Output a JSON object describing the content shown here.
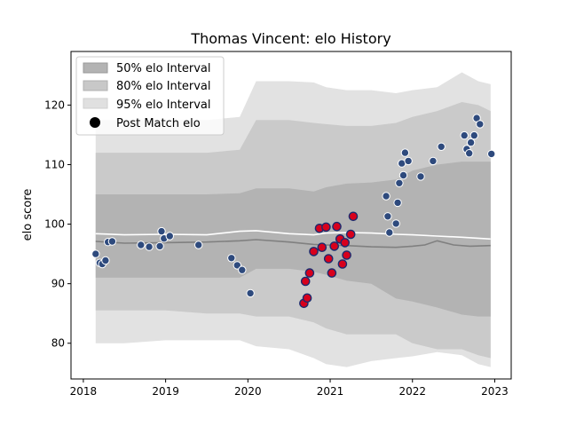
{
  "chart_data": {
    "type": "scatter",
    "title": "Thomas Vincent: elo History",
    "xlabel": "",
    "ylabel": "elo score",
    "xlim": [
      2017.85,
      2023.2
    ],
    "ylim": [
      74,
      129
    ],
    "x_ticks": [
      {
        "value": 2018,
        "label": "2018"
      },
      {
        "value": 2019,
        "label": "2019"
      },
      {
        "value": 2020,
        "label": "2020"
      },
      {
        "value": 2021,
        "label": "2021"
      },
      {
        "value": 2022,
        "label": "2022"
      },
      {
        "value": 2023,
        "label": "2023"
      }
    ],
    "y_ticks": [
      {
        "value": 80,
        "label": "80"
      },
      {
        "value": 90,
        "label": "90"
      },
      {
        "value": 100,
        "label": "100"
      },
      {
        "value": 110,
        "label": "110"
      },
      {
        "value": 120,
        "label": "120"
      }
    ],
    "grid": false,
    "legend_position": "top-left",
    "legend": [
      {
        "label": "50% elo Interval",
        "kind": "band",
        "color": "#b3b3b3"
      },
      {
        "label": "80% elo Interval",
        "kind": "band",
        "color": "#c8c8c8"
      },
      {
        "label": "95% elo Interval",
        "kind": "band",
        "color": "#e0e0e0"
      },
      {
        "label": "Post Match elo",
        "kind": "marker",
        "color": "#000000"
      }
    ],
    "colors": {
      "band_50": "#b3b3b3",
      "band_80": "#cacaca",
      "band_95": "#e2e2e2",
      "median_line": "#808080",
      "mean_line": "#ffffff",
      "point_blue": "#2e4a7d",
      "point_red": "#d8001c",
      "point_edge_white": "#ffffff",
      "point_edge_navy": "#1c2a6e"
    },
    "intervals": {
      "x": [
        2018.15,
        2018.5,
        2019.0,
        2019.5,
        2019.9,
        2020.1,
        2020.5,
        2020.8,
        2020.95,
        2021.2,
        2021.5,
        2021.8,
        2022.0,
        2022.3,
        2022.6,
        2022.8,
        2022.95
      ],
      "p95_high": [
        117.5,
        117.5,
        117.5,
        117.5,
        118,
        124,
        124,
        123.8,
        123,
        122.5,
        122.5,
        122,
        122.5,
        123,
        125.5,
        124,
        123.5
      ],
      "p80_high": [
        112,
        112,
        112,
        112,
        112.5,
        117.5,
        117.5,
        117,
        116.8,
        116.5,
        116.5,
        117,
        118,
        119,
        120.5,
        120,
        119
      ],
      "p50_high": [
        105,
        105,
        105,
        105,
        105.2,
        106,
        106,
        105.5,
        106.2,
        106.8,
        107,
        107.5,
        109,
        110,
        110.5,
        110.5,
        110.5
      ],
      "p50_low": [
        91,
        91,
        91,
        91,
        91,
        92.5,
        92.5,
        92,
        91.5,
        90.5,
        90,
        87.5,
        87,
        86,
        84.8,
        84.5,
        84.5
      ],
      "p80_low": [
        85.5,
        85.5,
        85.5,
        85,
        85,
        84.5,
        84.5,
        83.5,
        82.5,
        81.5,
        81.5,
        81.5,
        80,
        79,
        79,
        78,
        77.5
      ],
      "p95_low": [
        80,
        80,
        80.5,
        80.5,
        80.5,
        79.5,
        79,
        77.5,
        76.5,
        76,
        77,
        77.5,
        77.8,
        78.5,
        78,
        76.5,
        76
      ]
    },
    "median_line": {
      "x": [
        2018.15,
        2018.5,
        2019.0,
        2019.5,
        2019.9,
        2020.1,
        2020.5,
        2020.8,
        2020.95,
        2021.2,
        2021.5,
        2021.8,
        2022.0,
        2022.15,
        2022.3,
        2022.5,
        2022.7,
        2022.95
      ],
      "y": [
        97.1,
        96.8,
        96.9,
        97,
        97.2,
        97.4,
        97,
        96.6,
        96.5,
        96.4,
        96.2,
        96.1,
        96.3,
        96.5,
        97.2,
        96.5,
        96.3,
        96.4
      ]
    },
    "mean_line": {
      "x": [
        2018.15,
        2018.5,
        2019.0,
        2019.5,
        2019.9,
        2020.1,
        2020.5,
        2020.8,
        2020.95,
        2021.2,
        2021.5,
        2021.8,
        2022.0,
        2022.3,
        2022.6,
        2022.95
      ],
      "y": [
        98.4,
        98.2,
        98.3,
        98.2,
        98.8,
        98.9,
        98.4,
        98.2,
        98.5,
        98.6,
        98.5,
        98.3,
        98.2,
        98.0,
        97.8,
        97.5
      ]
    },
    "points": [
      {
        "x": 2018.15,
        "y": 95.0,
        "group": "blue"
      },
      {
        "x": 2018.2,
        "y": 93.5,
        "group": "blue"
      },
      {
        "x": 2018.23,
        "y": 93.3,
        "group": "blue"
      },
      {
        "x": 2018.27,
        "y": 93.9,
        "group": "blue"
      },
      {
        "x": 2018.3,
        "y": 97.0,
        "group": "blue"
      },
      {
        "x": 2018.35,
        "y": 97.1,
        "group": "blue"
      },
      {
        "x": 2018.7,
        "y": 96.5,
        "group": "blue"
      },
      {
        "x": 2018.8,
        "y": 96.2,
        "group": "blue"
      },
      {
        "x": 2018.93,
        "y": 96.3,
        "group": "blue"
      },
      {
        "x": 2018.95,
        "y": 98.8,
        "group": "blue"
      },
      {
        "x": 2018.98,
        "y": 97.6,
        "group": "blue"
      },
      {
        "x": 2019.05,
        "y": 98.0,
        "group": "blue"
      },
      {
        "x": 2019.4,
        "y": 96.5,
        "group": "blue"
      },
      {
        "x": 2019.8,
        "y": 94.3,
        "group": "blue"
      },
      {
        "x": 2019.87,
        "y": 93.1,
        "group": "blue"
      },
      {
        "x": 2019.93,
        "y": 92.3,
        "group": "blue"
      },
      {
        "x": 2020.03,
        "y": 88.4,
        "group": "blue"
      },
      {
        "x": 2020.68,
        "y": 86.7,
        "group": "red"
      },
      {
        "x": 2020.7,
        "y": 90.4,
        "group": "red"
      },
      {
        "x": 2020.72,
        "y": 87.6,
        "group": "red"
      },
      {
        "x": 2020.75,
        "y": 91.8,
        "group": "red"
      },
      {
        "x": 2020.8,
        "y": 95.4,
        "group": "red"
      },
      {
        "x": 2020.87,
        "y": 99.3,
        "group": "red"
      },
      {
        "x": 2020.9,
        "y": 96.1,
        "group": "red"
      },
      {
        "x": 2020.95,
        "y": 99.5,
        "group": "red"
      },
      {
        "x": 2020.98,
        "y": 94.2,
        "group": "red"
      },
      {
        "x": 2021.02,
        "y": 91.8,
        "group": "red"
      },
      {
        "x": 2021.05,
        "y": 96.3,
        "group": "red"
      },
      {
        "x": 2021.08,
        "y": 99.6,
        "group": "red"
      },
      {
        "x": 2021.12,
        "y": 97.5,
        "group": "red"
      },
      {
        "x": 2021.15,
        "y": 93.3,
        "group": "red"
      },
      {
        "x": 2021.18,
        "y": 96.9,
        "group": "red"
      },
      {
        "x": 2021.2,
        "y": 94.8,
        "group": "red"
      },
      {
        "x": 2021.25,
        "y": 98.3,
        "group": "red"
      },
      {
        "x": 2021.28,
        "y": 101.3,
        "group": "red"
      },
      {
        "x": 2021.68,
        "y": 104.7,
        "group": "blue"
      },
      {
        "x": 2021.7,
        "y": 101.3,
        "group": "blue"
      },
      {
        "x": 2021.72,
        "y": 98.6,
        "group": "blue"
      },
      {
        "x": 2021.8,
        "y": 100.1,
        "group": "blue"
      },
      {
        "x": 2021.82,
        "y": 103.6,
        "group": "blue"
      },
      {
        "x": 2021.84,
        "y": 106.9,
        "group": "blue"
      },
      {
        "x": 2021.87,
        "y": 110.2,
        "group": "blue"
      },
      {
        "x": 2021.89,
        "y": 108.2,
        "group": "blue"
      },
      {
        "x": 2021.91,
        "y": 112.0,
        "group": "blue"
      },
      {
        "x": 2021.95,
        "y": 110.6,
        "group": "blue"
      },
      {
        "x": 2022.1,
        "y": 108.0,
        "group": "blue"
      },
      {
        "x": 2022.25,
        "y": 110.6,
        "group": "blue"
      },
      {
        "x": 2022.35,
        "y": 113.0,
        "group": "blue"
      },
      {
        "x": 2022.63,
        "y": 114.9,
        "group": "blue"
      },
      {
        "x": 2022.66,
        "y": 112.6,
        "group": "blue"
      },
      {
        "x": 2022.69,
        "y": 111.9,
        "group": "blue"
      },
      {
        "x": 2022.71,
        "y": 113.7,
        "group": "blue"
      },
      {
        "x": 2022.75,
        "y": 114.9,
        "group": "blue"
      },
      {
        "x": 2022.78,
        "y": 117.8,
        "group": "blue"
      },
      {
        "x": 2022.82,
        "y": 116.8,
        "group": "blue"
      },
      {
        "x": 2022.96,
        "y": 111.8,
        "group": "blue"
      }
    ]
  }
}
